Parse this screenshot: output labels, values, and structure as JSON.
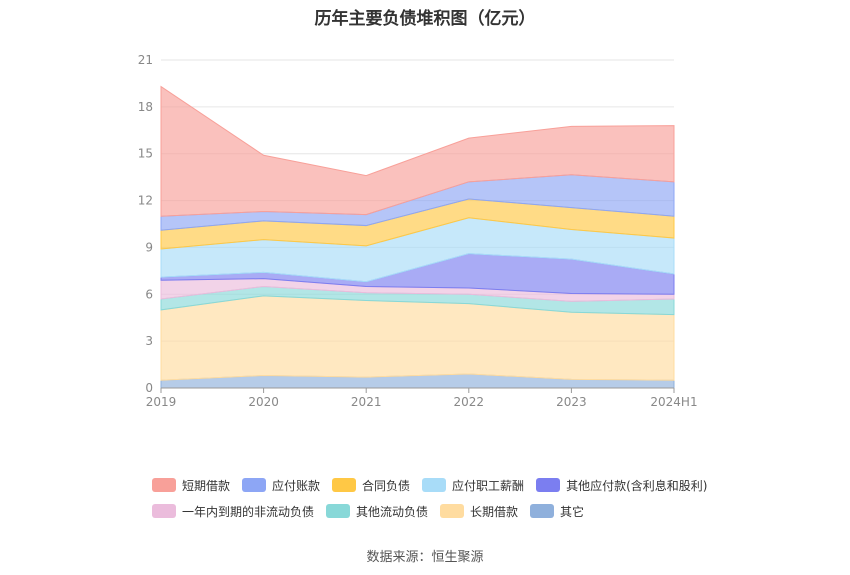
{
  "title": "历年主要负债堆积图（亿元）",
  "source": "数据来源：恒生聚源",
  "chart_data": {
    "type": "area",
    "stacked": true,
    "x": [
      "2019",
      "2020",
      "2021",
      "2022",
      "2023",
      "2024H1"
    ],
    "ylim": [
      0,
      21
    ],
    "yticks": [
      0,
      3,
      6,
      9,
      12,
      15,
      18,
      21
    ],
    "grid": true,
    "legend_position": "bottom",
    "series": [
      {
        "name": "其它",
        "color": "#8fb0dc",
        "values": [
          0.5,
          0.8,
          0.7,
          0.9,
          0.55,
          0.5
        ]
      },
      {
        "name": "长期借款",
        "color": "#ffdca0",
        "values": [
          4.5,
          5.1,
          4.9,
          4.5,
          4.3,
          4.2
        ]
      },
      {
        "name": "其他流动负债",
        "color": "#88d8d8",
        "values": [
          0.7,
          0.6,
          0.5,
          0.6,
          0.7,
          1.0
        ]
      },
      {
        "name": "一年内到期的非流动负债",
        "color": "#ebbcdc",
        "values": [
          1.2,
          0.5,
          0.4,
          0.4,
          0.5,
          0.3
        ]
      },
      {
        "name": "其他应付款(含利息和股利)",
        "color": "#7b7ef0",
        "values": [
          0.2,
          0.4,
          0.3,
          2.2,
          2.2,
          1.3
        ]
      },
      {
        "name": "应付职工薪酬",
        "color": "#a8dcf8",
        "values": [
          1.8,
          2.1,
          2.3,
          2.3,
          1.9,
          2.3
        ]
      },
      {
        "name": "合同负债",
        "color": "#ffc845",
        "values": [
          1.2,
          1.2,
          1.3,
          1.2,
          1.4,
          1.4
        ]
      },
      {
        "name": "应付账款",
        "color": "#8da6f5",
        "values": [
          0.9,
          0.6,
          0.7,
          1.1,
          2.1,
          2.2
        ]
      },
      {
        "name": "短期借款",
        "color": "#f8a099",
        "values": [
          8.3,
          3.6,
          2.5,
          2.8,
          3.1,
          3.6
        ]
      }
    ]
  },
  "legend_rows": [
    [
      {
        "name": "短期借款",
        "color": "#f8a099"
      },
      {
        "name": "应付账款",
        "color": "#8da6f5"
      },
      {
        "name": "合同负债",
        "color": "#ffc845"
      },
      {
        "name": "应付职工薪酬",
        "color": "#a8dcf8"
      },
      {
        "name": "其他应付款(含利息和股利)",
        "color": "#7b7ef0"
      }
    ],
    [
      {
        "name": "一年内到期的非流动负债",
        "color": "#ebbcdc"
      },
      {
        "name": "其他流动负债",
        "color": "#88d8d8"
      },
      {
        "name": "长期借款",
        "color": "#ffdca0"
      },
      {
        "name": "其它",
        "color": "#8fb0dc"
      }
    ]
  ]
}
